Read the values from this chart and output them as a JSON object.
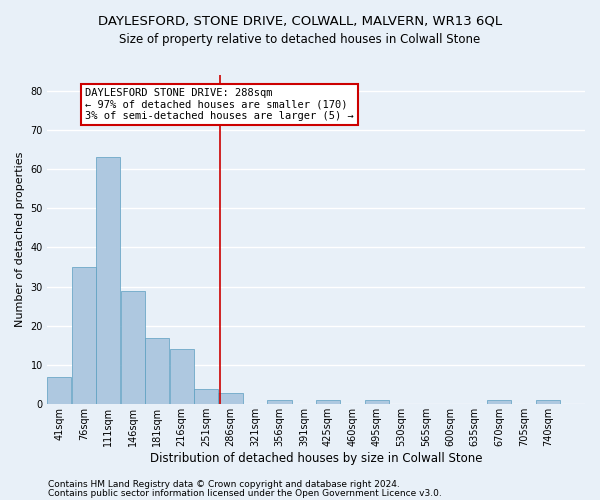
{
  "title": "DAYLESFORD, STONE DRIVE, COLWALL, MALVERN, WR13 6QL",
  "subtitle": "Size of property relative to detached houses in Colwall Stone",
  "xlabel": "Distribution of detached houses by size in Colwall Stone",
  "ylabel": "Number of detached properties",
  "footnote1": "Contains HM Land Registry data © Crown copyright and database right 2024.",
  "footnote2": "Contains public sector information licensed under the Open Government Licence v3.0.",
  "bin_labels": [
    "41sqm",
    "76sqm",
    "111sqm",
    "146sqm",
    "181sqm",
    "216sqm",
    "251sqm",
    "286sqm",
    "321sqm",
    "356sqm",
    "391sqm",
    "425sqm",
    "460sqm",
    "495sqm",
    "530sqm",
    "565sqm",
    "600sqm",
    "635sqm",
    "670sqm",
    "705sqm",
    "740sqm"
  ],
  "bin_edges": [
    41,
    76,
    111,
    146,
    181,
    216,
    251,
    286,
    321,
    356,
    391,
    425,
    460,
    495,
    530,
    565,
    600,
    635,
    670,
    705,
    740,
    775
  ],
  "values": [
    7,
    35,
    63,
    29,
    17,
    14,
    4,
    3,
    0,
    1,
    0,
    1,
    0,
    1,
    0,
    0,
    0,
    0,
    1,
    0,
    1
  ],
  "bar_color": "#aec8e0",
  "bar_edge_color": "#5a9ec0",
  "property_line_x": 288,
  "property_line_color": "#cc0000",
  "annotation_title": "DAYLESFORD STONE DRIVE: 288sqm",
  "annotation_line1": "← 97% of detached houses are smaller (170)",
  "annotation_line2": "3% of semi-detached houses are larger (5) →",
  "annotation_box_color": "white",
  "annotation_box_edge": "#cc0000",
  "ylim": [
    0,
    84
  ],
  "yticks": [
    0,
    10,
    20,
    30,
    40,
    50,
    60,
    70,
    80
  ],
  "background_color": "#e8f0f8",
  "grid_color": "white",
  "title_fontsize": 9.5,
  "subtitle_fontsize": 8.5,
  "ylabel_fontsize": 8,
  "xlabel_fontsize": 8.5,
  "tick_fontsize": 7,
  "annotation_fontsize": 7.5,
  "footnote_fontsize": 6.5
}
